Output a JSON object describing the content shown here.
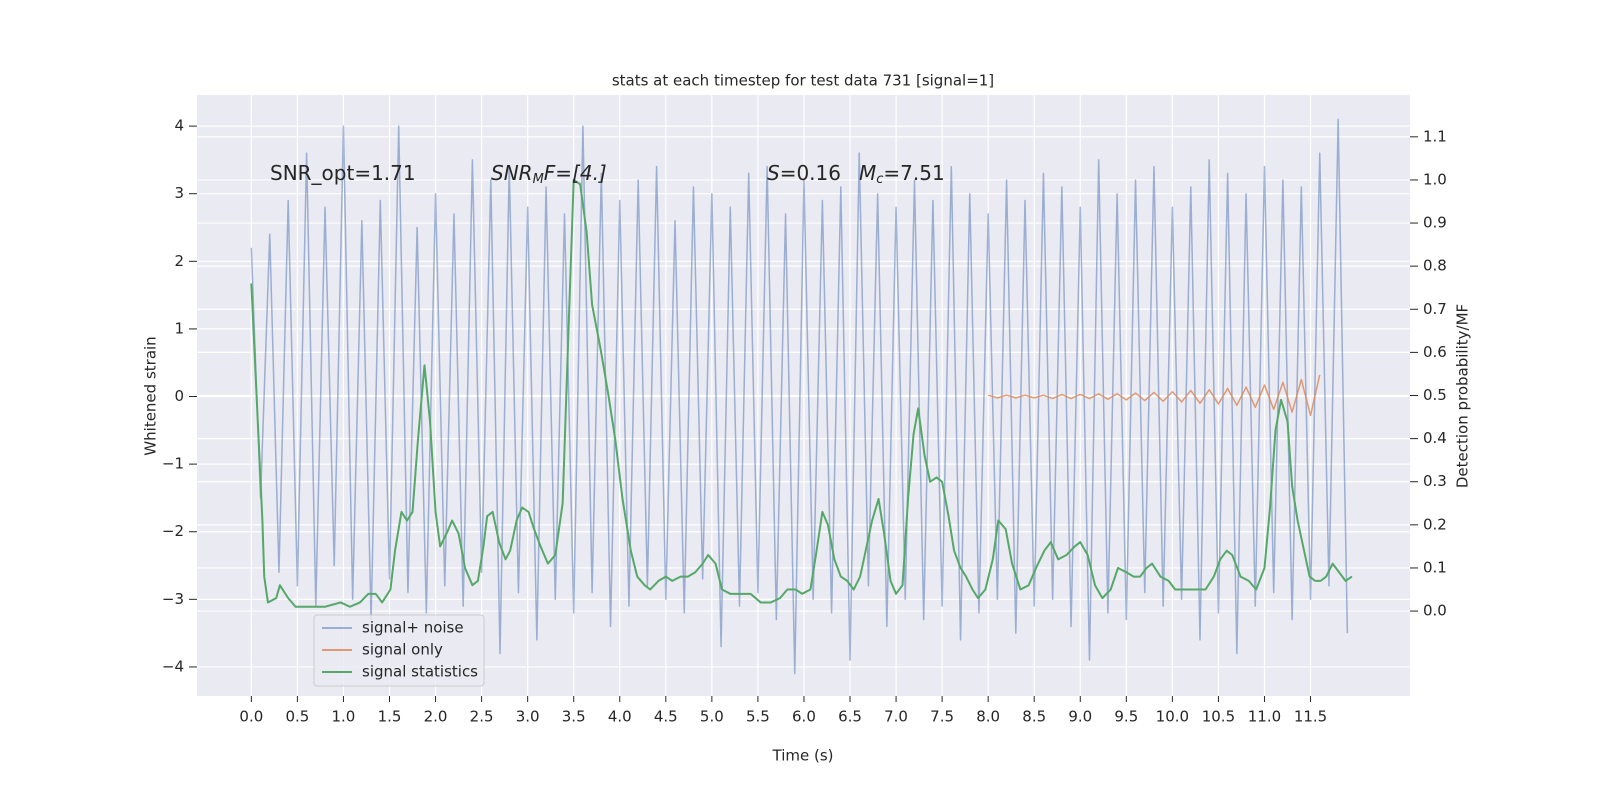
{
  "chart_data": {
    "type": "line",
    "title": "stats at each timestep for test data 731 [signal=1]",
    "xlabel": "Time (s)",
    "ylabel": "Whitened strain",
    "y2label": "Detection probability/MF",
    "annotations": [
      [
        "SNR_opt=1.71"
      ],
      [
        "SNR",
        "M",
        "F=[4.]"
      ],
      [
        "S",
        "=0.16"
      ],
      [
        "M",
        "c",
        "=7.51"
      ]
    ],
    "xlim": [
      -0.59,
      12.58
    ],
    "ylim": [
      -4.43,
      4.46
    ],
    "y2lim": [
      -0.197,
      1.197
    ],
    "xticks": [
      {
        "value": 0,
        "label": "0.0"
      },
      0.5,
      {
        "value": 1,
        "label": "1.0"
      },
      1.5,
      {
        "value": 2,
        "label": "2.0"
      },
      2.5,
      {
        "value": 3,
        "label": "3.0"
      },
      3.5,
      {
        "value": 4,
        "label": "4.0"
      },
      4.5,
      {
        "value": 5,
        "label": "5.0"
      },
      5.5,
      {
        "value": 6,
        "label": "6.0"
      },
      6.5,
      {
        "value": 7,
        "label": "7.0"
      },
      7.5,
      {
        "value": 8,
        "label": "8.0"
      },
      8.5,
      {
        "value": 9,
        "label": "9.0"
      },
      9.5,
      {
        "value": 10,
        "label": "10.0"
      },
      10.5,
      {
        "value": 11,
        "label": "11.0"
      },
      11.5
    ],
    "yticks": [
      {
        "value": -4,
        "label": "−4"
      },
      {
        "value": -3,
        "label": "−3"
      },
      {
        "value": -2,
        "label": "−2"
      },
      {
        "value": -1,
        "label": "−1"
      },
      0,
      1,
      2,
      3,
      4
    ],
    "y2ticks": [
      {
        "value": 0,
        "label": "0.0"
      },
      0.1,
      0.2,
      0.3,
      0.4,
      0.5,
      0.6,
      0.7,
      0.8,
      0.9,
      {
        "value": 1,
        "label": "1.0"
      },
      1.1
    ],
    "grid": true,
    "legend": "lower left",
    "background": "#eaeaf2",
    "series": [
      {
        "name": "signal+ noise",
        "color": "#4c72b0",
        "opacity": 0.5,
        "x": [
          0.0,
          0.1,
          0.2,
          0.3,
          0.4,
          0.5,
          0.6,
          0.7,
          0.8,
          0.9,
          1.0,
          1.1,
          1.2,
          1.3,
          1.4,
          1.5,
          1.6,
          1.7,
          1.8,
          1.9,
          2.0,
          2.1,
          2.2,
          2.3,
          2.4,
          2.5,
          2.6,
          2.7,
          2.8,
          2.9,
          3.0,
          3.1,
          3.2,
          3.3,
          3.4,
          3.5,
          3.6,
          3.7,
          3.8,
          3.9,
          4.0,
          4.1,
          4.2,
          4.3,
          4.4,
          4.5,
          4.6,
          4.7,
          4.8,
          4.9,
          5.0,
          5.1,
          5.2,
          5.3,
          5.4,
          5.5,
          5.6,
          5.7,
          5.8,
          5.9,
          6.0,
          6.1,
          6.2,
          6.3,
          6.4,
          6.5,
          6.6,
          6.7,
          6.8,
          6.9,
          7.0,
          7.1,
          7.2,
          7.3,
          7.4,
          7.5,
          7.6,
          7.7,
          7.8,
          7.9,
          8.0,
          8.1,
          8.2,
          8.3,
          8.4,
          8.5,
          8.6,
          8.7,
          8.8,
          8.9,
          9.0,
          9.1,
          9.2,
          9.3,
          9.4,
          9.5,
          9.6,
          9.7,
          9.8,
          9.9,
          10.0,
          10.1,
          10.2,
          10.3,
          10.4,
          10.5,
          10.6,
          10.7,
          10.8,
          10.9,
          11.0,
          11.1,
          11.2,
          11.3,
          11.4,
          11.5,
          11.6,
          11.7,
          11.8,
          11.9
        ],
        "values": [
          2.2,
          -1.5,
          2.4,
          -2.6,
          2.9,
          -2.8,
          3.6,
          -3.1,
          2.8,
          -2.5,
          4.0,
          -3.0,
          2.6,
          -3.3,
          2.9,
          -2.7,
          4.0,
          -2.9,
          2.5,
          -3.2,
          3.0,
          -2.8,
          2.7,
          -3.1,
          3.5,
          -2.6,
          3.2,
          -3.8,
          3.4,
          -2.9,
          2.8,
          -3.6,
          3.1,
          -3.0,
          2.7,
          -3.2,
          4.0,
          -2.9,
          3.3,
          -3.4,
          2.9,
          -3.1,
          3.2,
          -2.8,
          3.4,
          -3.0,
          2.6,
          -3.2,
          3.1,
          -2.7,
          3.0,
          -3.7,
          2.8,
          -3.1,
          3.3,
          -2.9,
          3.4,
          -3.3,
          2.7,
          -4.1,
          3.2,
          -3.0,
          2.9,
          -3.2,
          3.1,
          -3.9,
          3.6,
          -2.8,
          3.0,
          -3.4,
          2.8,
          -3.0,
          3.2,
          -3.3,
          2.9,
          -3.1,
          3.4,
          -3.6,
          3.0,
          -3.2,
          2.7,
          -3.0,
          3.2,
          -3.5,
          2.9,
          -3.1,
          3.3,
          -3.0,
          3.1,
          -3.4,
          2.8,
          -3.9,
          3.5,
          -3.2,
          3.0,
          -3.3,
          3.2,
          -2.9,
          3.4,
          -3.1,
          2.8,
          -3.0,
          3.1,
          -3.6,
          3.5,
          -3.2,
          3.3,
          -3.8,
          3.0,
          -3.1,
          3.4,
          -2.9,
          3.2,
          -3.3,
          3.1,
          -3.0,
          3.6,
          -2.8,
          4.1,
          -3.5
        ]
      },
      {
        "name": "signal only",
        "color": "#dd8452",
        "opacity": 0.8,
        "x": [
          8.0,
          8.1,
          8.2,
          8.3,
          8.4,
          8.5,
          8.6,
          8.7,
          8.8,
          8.9,
          9.0,
          9.1,
          9.2,
          9.3,
          9.4,
          9.5,
          9.6,
          9.7,
          9.8,
          9.9,
          10.0,
          10.1,
          10.2,
          10.3,
          10.4,
          10.5,
          10.6,
          10.7,
          10.8,
          10.9,
          11.0,
          11.1,
          11.2,
          11.3,
          11.4,
          11.5,
          11.6
        ],
        "values": [
          0.02,
          -0.02,
          0.02,
          -0.02,
          0.02,
          -0.02,
          0.02,
          -0.03,
          0.03,
          -0.03,
          0.03,
          -0.03,
          0.04,
          -0.04,
          0.04,
          -0.05,
          0.05,
          -0.06,
          0.06,
          -0.07,
          0.07,
          -0.08,
          0.09,
          -0.1,
          0.1,
          -0.11,
          0.12,
          -0.13,
          0.14,
          -0.16,
          0.17,
          -0.19,
          0.21,
          -0.23,
          0.25,
          -0.28,
          0.32
        ]
      },
      {
        "name": "signal statistics",
        "color": "#55a868",
        "opacity": 1,
        "axis": "y2",
        "x": [
          0.0,
          0.12,
          0.14,
          0.18,
          0.27,
          0.31,
          0.4,
          0.48,
          0.59,
          0.69,
          0.8,
          0.97,
          1.07,
          1.18,
          1.27,
          1.35,
          1.42,
          1.51,
          1.56,
          1.63,
          1.69,
          1.75,
          1.81,
          1.88,
          1.94,
          2.0,
          2.05,
          2.12,
          2.18,
          2.25,
          2.32,
          2.4,
          2.46,
          2.52,
          2.56,
          2.62,
          2.69,
          2.76,
          2.81,
          2.88,
          2.94,
          3.01,
          3.07,
          3.14,
          3.22,
          3.3,
          3.38,
          3.44,
          3.5,
          3.57,
          3.64,
          3.7,
          3.79,
          3.87,
          3.95,
          4.03,
          4.12,
          4.19,
          4.27,
          4.33,
          4.42,
          4.5,
          4.57,
          4.66,
          4.74,
          4.82,
          4.9,
          4.96,
          5.04,
          5.11,
          5.2,
          5.31,
          5.42,
          5.53,
          5.64,
          5.74,
          5.82,
          5.91,
          5.98,
          6.07,
          6.13,
          6.2,
          6.26,
          6.33,
          6.4,
          6.47,
          6.54,
          6.61,
          6.68,
          6.74,
          6.81,
          6.87,
          6.94,
          7.0,
          7.07,
          7.13,
          7.19,
          7.24,
          7.31,
          7.37,
          7.44,
          7.5,
          7.57,
          7.63,
          7.7,
          7.76,
          7.83,
          7.89,
          7.97,
          8.05,
          8.11,
          8.19,
          8.26,
          8.35,
          8.44,
          8.52,
          8.61,
          8.68,
          8.76,
          8.85,
          8.94,
          9.0,
          9.08,
          9.16,
          9.24,
          9.33,
          9.41,
          9.5,
          9.58,
          9.65,
          9.72,
          9.78,
          9.87,
          9.96,
          10.03,
          10.14,
          10.25,
          10.36,
          10.45,
          10.52,
          10.59,
          10.65,
          10.74,
          10.83,
          10.91,
          11.0,
          11.06,
          11.12,
          11.18,
          11.25,
          11.3,
          11.36,
          11.42,
          11.49,
          11.55,
          11.61,
          11.67,
          11.74,
          11.81,
          11.88,
          11.95
        ],
        "values": [
          0.76,
          0.21,
          0.08,
          0.02,
          0.03,
          0.06,
          0.03,
          0.01,
          0.01,
          0.01,
          0.01,
          0.02,
          0.01,
          0.02,
          0.04,
          0.04,
          0.02,
          0.05,
          0.14,
          0.23,
          0.21,
          0.23,
          0.4,
          0.57,
          0.44,
          0.23,
          0.15,
          0.18,
          0.21,
          0.18,
          0.1,
          0.06,
          0.07,
          0.15,
          0.22,
          0.23,
          0.16,
          0.12,
          0.14,
          0.21,
          0.24,
          0.23,
          0.19,
          0.15,
          0.11,
          0.13,
          0.25,
          0.63,
          1.0,
          0.99,
          0.88,
          0.71,
          0.61,
          0.51,
          0.4,
          0.26,
          0.14,
          0.08,
          0.06,
          0.05,
          0.07,
          0.08,
          0.07,
          0.08,
          0.08,
          0.09,
          0.11,
          0.13,
          0.11,
          0.05,
          0.04,
          0.04,
          0.04,
          0.02,
          0.02,
          0.03,
          0.05,
          0.05,
          0.04,
          0.05,
          0.13,
          0.23,
          0.2,
          0.12,
          0.08,
          0.07,
          0.05,
          0.08,
          0.15,
          0.21,
          0.26,
          0.18,
          0.07,
          0.04,
          0.06,
          0.26,
          0.41,
          0.47,
          0.36,
          0.3,
          0.31,
          0.3,
          0.22,
          0.14,
          0.1,
          0.08,
          0.05,
          0.03,
          0.05,
          0.12,
          0.21,
          0.19,
          0.11,
          0.05,
          0.06,
          0.1,
          0.14,
          0.16,
          0.12,
          0.13,
          0.15,
          0.16,
          0.13,
          0.06,
          0.03,
          0.05,
          0.1,
          0.09,
          0.08,
          0.08,
          0.1,
          0.11,
          0.08,
          0.07,
          0.05,
          0.05,
          0.05,
          0.05,
          0.08,
          0.12,
          0.14,
          0.13,
          0.08,
          0.07,
          0.05,
          0.1,
          0.24,
          0.42,
          0.49,
          0.44,
          0.29,
          0.21,
          0.15,
          0.08,
          0.07,
          0.07,
          0.08,
          0.11,
          0.09,
          0.07,
          0.08
        ]
      }
    ]
  }
}
